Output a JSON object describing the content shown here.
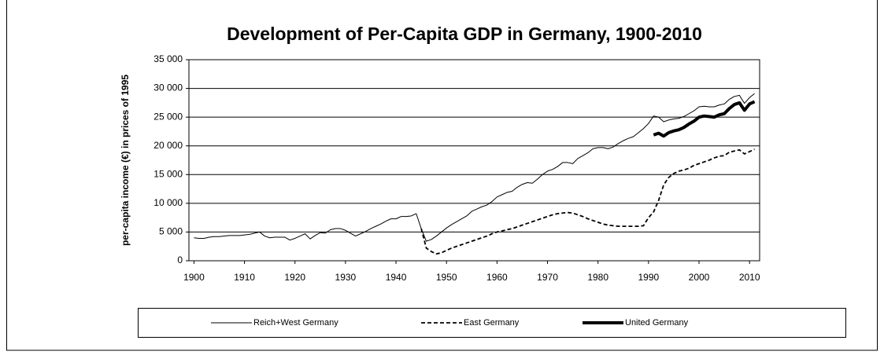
{
  "chart_data": {
    "type": "line",
    "title": "Development of Per-Capita GDP in Germany, 1900-2010",
    "y_label": "per-capita income (€) in prices of 1995",
    "x": [
      1900,
      1901,
      1902,
      1903,
      1904,
      1905,
      1906,
      1907,
      1908,
      1909,
      1910,
      1911,
      1912,
      1913,
      1914,
      1915,
      1916,
      1917,
      1918,
      1919,
      1920,
      1921,
      1922,
      1923,
      1924,
      1925,
      1926,
      1927,
      1928,
      1929,
      1930,
      1931,
      1932,
      1933,
      1934,
      1935,
      1936,
      1937,
      1938,
      1939,
      1940,
      1941,
      1942,
      1943,
      1944,
      1945,
      1946,
      1947,
      1948,
      1949,
      1950,
      1951,
      1952,
      1953,
      1954,
      1955,
      1956,
      1957,
      1958,
      1959,
      1960,
      1961,
      1962,
      1963,
      1964,
      1965,
      1966,
      1967,
      1968,
      1969,
      1970,
      1971,
      1972,
      1973,
      1974,
      1975,
      1976,
      1977,
      1978,
      1979,
      1980,
      1981,
      1982,
      1983,
      1984,
      1985,
      1986,
      1987,
      1988,
      1989,
      1990,
      1991,
      1992,
      1993,
      1994,
      1995,
      1996,
      1997,
      1998,
      1999,
      2000,
      2001,
      2002,
      2003,
      2004,
      2005,
      2006,
      2007,
      2008,
      2009,
      2010,
      2011
    ],
    "series": [
      {
        "name": "Reich+West Germany",
        "color": "#000000",
        "width": 1,
        "dash": false,
        "values": [
          4000,
          3900,
          3900,
          4100,
          4200,
          4200,
          4300,
          4400,
          4400,
          4400,
          4500,
          4600,
          4800,
          5000,
          4300,
          4000,
          4100,
          4100,
          4100,
          3600,
          3900,
          4300,
          4700,
          3800,
          4400,
          4900,
          4800,
          5400,
          5600,
          5600,
          5300,
          4800,
          4300,
          4700,
          5100,
          5600,
          6000,
          6400,
          6900,
          7300,
          7300,
          7700,
          7700,
          7800,
          8200,
          5600,
          3400,
          3700,
          4300,
          5000,
          5700,
          6300,
          6800,
          7300,
          7800,
          8600,
          9000,
          9400,
          9700,
          10300,
          11100,
          11500,
          11900,
          12100,
          12800,
          13300,
          13600,
          13500,
          14200,
          15000,
          15600,
          15900,
          16400,
          17100,
          17100,
          16900,
          17800,
          18300,
          18800,
          19500,
          19700,
          19700,
          19500,
          19800,
          20400,
          20900,
          21300,
          21600,
          22300,
          23000,
          23900,
          25200,
          25000,
          24200,
          24500,
          24700,
          24800,
          25100,
          25600,
          26100,
          26800,
          26900,
          26800,
          26800,
          27100,
          27300,
          28100,
          28600,
          28800,
          27400,
          28400,
          29100
        ]
      },
      {
        "name": "East Germany",
        "color": "#000000",
        "width": 1.8,
        "dash": true,
        "values": [
          null,
          null,
          null,
          null,
          null,
          null,
          null,
          null,
          null,
          null,
          null,
          null,
          null,
          null,
          null,
          null,
          null,
          null,
          null,
          null,
          null,
          null,
          null,
          null,
          null,
          null,
          null,
          null,
          null,
          null,
          null,
          null,
          null,
          null,
          null,
          null,
          null,
          null,
          null,
          null,
          null,
          null,
          null,
          null,
          null,
          5600,
          2200,
          1600,
          1200,
          1400,
          1800,
          2200,
          2500,
          2800,
          3100,
          3400,
          3700,
          4000,
          4300,
          4700,
          5000,
          5200,
          5400,
          5600,
          5900,
          6200,
          6500,
          6800,
          7100,
          7400,
          7700,
          8000,
          8200,
          8300,
          8400,
          8300,
          8000,
          7700,
          7300,
          7000,
          6700,
          6400,
          6200,
          6100,
          6000,
          6000,
          6000,
          6000,
          6000,
          6100,
          7500,
          8500,
          10500,
          13200,
          14500,
          15200,
          15600,
          15800,
          16100,
          16600,
          16900,
          17200,
          17500,
          17900,
          18200,
          18300,
          18900,
          19100,
          19300,
          18600,
          19000,
          19400
        ]
      },
      {
        "name": "United Germany",
        "color": "#000000",
        "width": 4,
        "dash": false,
        "values": [
          null,
          null,
          null,
          null,
          null,
          null,
          null,
          null,
          null,
          null,
          null,
          null,
          null,
          null,
          null,
          null,
          null,
          null,
          null,
          null,
          null,
          null,
          null,
          null,
          null,
          null,
          null,
          null,
          null,
          null,
          null,
          null,
          null,
          null,
          null,
          null,
          null,
          null,
          null,
          null,
          null,
          null,
          null,
          null,
          null,
          null,
          null,
          null,
          null,
          null,
          null,
          null,
          null,
          null,
          null,
          null,
          null,
          null,
          null,
          null,
          null,
          null,
          null,
          null,
          null,
          null,
          null,
          null,
          null,
          null,
          null,
          null,
          null,
          null,
          null,
          null,
          null,
          null,
          null,
          null,
          null,
          null,
          null,
          null,
          null,
          null,
          null,
          null,
          null,
          null,
          null,
          21900,
          22200,
          21700,
          22300,
          22600,
          22800,
          23200,
          23800,
          24300,
          25000,
          25200,
          25100,
          25000,
          25400,
          25600,
          26500,
          27200,
          27500,
          26200,
          27300,
          27700
        ]
      }
    ],
    "xlim": [
      1899,
      2012
    ],
    "xticks": [
      1900,
      1910,
      1920,
      1930,
      1940,
      1950,
      1960,
      1970,
      1980,
      1990,
      2000,
      2010
    ],
    "ylim": [
      0,
      35000
    ],
    "yticks": [
      0,
      {
        "value": 5000,
        "label": "5 000"
      },
      {
        "value": 10000,
        "label": "10 000"
      },
      {
        "value": 15000,
        "label": "15 000"
      },
      {
        "value": 20000,
        "label": "20 000"
      },
      {
        "value": 25000,
        "label": "25 000"
      },
      {
        "value": 30000,
        "label": "30 000"
      },
      {
        "value": 35000,
        "label": "35 000"
      }
    ],
    "grid": true,
    "legend": "bottom"
  }
}
